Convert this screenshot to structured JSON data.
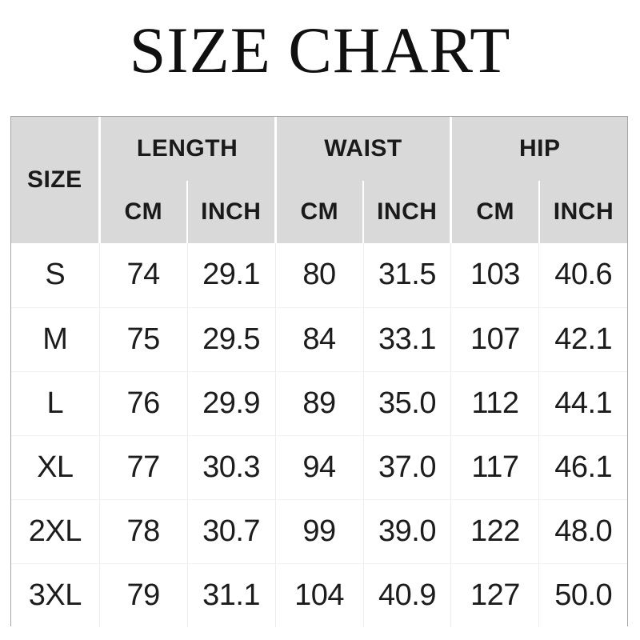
{
  "title": "SIZE CHART",
  "table": {
    "size_header": "SIZE",
    "groups": [
      "LENGTH",
      "WAIST",
      "HIP"
    ],
    "units": [
      "CM",
      "INCH",
      "CM",
      "INCH",
      "CM",
      "INCH"
    ],
    "rows": [
      {
        "size": "S",
        "cells": [
          "74",
          "29.1",
          "80",
          "31.5",
          "103",
          "40.6"
        ]
      },
      {
        "size": "M",
        "cells": [
          "75",
          "29.5",
          "84",
          "33.1",
          "107",
          "42.1"
        ]
      },
      {
        "size": "L",
        "cells": [
          "76",
          "29.9",
          "89",
          "35.0",
          "112",
          "44.1"
        ]
      },
      {
        "size": "XL",
        "cells": [
          "77",
          "30.3",
          "94",
          "37.0",
          "117",
          "46.1"
        ]
      },
      {
        "size": "2XL",
        "cells": [
          "78",
          "30.7",
          "99",
          "39.0",
          "122",
          "48.0"
        ]
      },
      {
        "size": "3XL",
        "cells": [
          "79",
          "31.1",
          "104",
          "40.9",
          "127",
          "50.0"
        ]
      }
    ]
  },
  "colors": {
    "header_background": "#d9d9d9",
    "header_divider": "#ffffff",
    "grid_line": "#eeeeee",
    "outer_border": "#a6a6a6",
    "text": "#141414",
    "page_background": "#ffffff"
  },
  "chart_data": {
    "type": "table",
    "title": "SIZE CHART",
    "column_groups": [
      "SIZE",
      "LENGTH",
      "WAIST",
      "HIP"
    ],
    "columns": [
      "SIZE",
      "LENGTH CM",
      "LENGTH INCH",
      "WAIST CM",
      "WAIST INCH",
      "HIP CM",
      "HIP INCH"
    ],
    "rows": [
      [
        "S",
        74,
        29.1,
        80,
        31.5,
        103,
        40.6
      ],
      [
        "M",
        75,
        29.5,
        84,
        33.1,
        107,
        42.1
      ],
      [
        "L",
        76,
        29.9,
        89,
        35.0,
        112,
        44.1
      ],
      [
        "XL",
        77,
        30.3,
        94,
        37.0,
        117,
        46.1
      ],
      [
        "2XL",
        78,
        30.7,
        99,
        39.0,
        122,
        48.0
      ],
      [
        "3XL",
        79,
        31.1,
        104,
        40.9,
        127,
        50.0
      ]
    ]
  }
}
